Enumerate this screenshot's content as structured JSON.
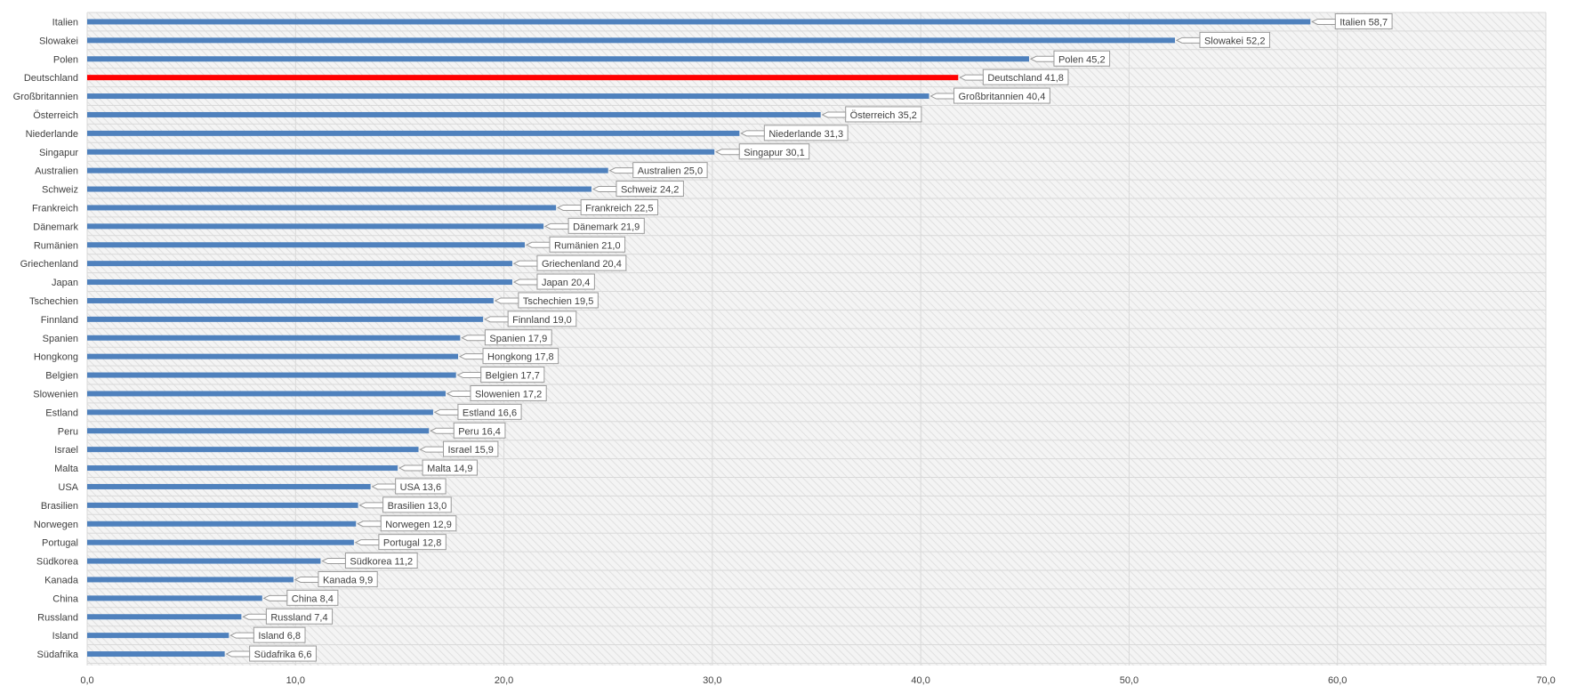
{
  "colors": {
    "bar": "#4f81bd",
    "highlight": "#ff0000",
    "label_border": "#9a9a9a",
    "plot_bg": "#f4f4f4",
    "grid": "#d9d9d9",
    "hatch": "#e0e0e0"
  },
  "chart_data": {
    "type": "bar",
    "orientation": "horizontal",
    "title": "",
    "xlabel": "",
    "ylabel": "",
    "xlim": [
      0,
      70
    ],
    "xticks": [
      0,
      10,
      20,
      30,
      40,
      50,
      60,
      70
    ],
    "xtick_labels": [
      "0,0",
      "10,0",
      "20,0",
      "30,0",
      "40,0",
      "50,0",
      "60,0",
      "70,0"
    ],
    "grid": true,
    "legend": "none",
    "highlight_category": "Deutschland",
    "categories": [
      "Italien",
      "Slowakei",
      "Polen",
      "Deutschland",
      "Großbritannien",
      "Österreich",
      "Niederlande",
      "Singapur",
      "Australien",
      "Schweiz",
      "Frankreich",
      "Dänemark",
      "Rumänien",
      "Griechenland",
      "Japan",
      "Tschechien",
      "Finnland",
      "Spanien",
      "Hongkong",
      "Belgien",
      "Slowenien",
      "Estland",
      "Peru",
      "Israel",
      "Malta",
      "USA",
      "Brasilien",
      "Norwegen",
      "Portugal",
      "Südkorea",
      "Kanada",
      "China",
      "Russland",
      "Island",
      "Südafrika"
    ],
    "values": [
      58.7,
      52.2,
      45.2,
      41.8,
      40.4,
      35.2,
      31.3,
      30.1,
      25.0,
      24.2,
      22.5,
      21.9,
      21.0,
      20.4,
      20.4,
      19.5,
      19.0,
      17.9,
      17.8,
      17.7,
      17.2,
      16.6,
      16.4,
      15.9,
      14.9,
      13.6,
      13.0,
      12.9,
      12.8,
      11.2,
      9.9,
      8.4,
      7.4,
      6.8,
      6.6
    ],
    "data_labels": [
      "Italien 58,7",
      "Slowakei 52,2",
      "Polen 45,2",
      "Deutschland 41,8",
      "Großbritannien  40,4",
      "Österreich 35,2",
      "Niederlande 31,3",
      "Singapur 30,1",
      "Australien 25,0",
      "Schweiz 24,2",
      "Frankreich  22,5",
      "Dänemark 21,9",
      "Rumänien 21,0",
      "Griechenland  20,4",
      "Japan  20,4",
      "Tschechien  19,5",
      "Finnland  19,0",
      "Spanien 17,9",
      "Hongkong  17,8",
      "Belgien 17,7",
      "Slowenien 17,2",
      "Estland 16,6",
      "Peru 16,4",
      "Israel 15,9",
      "Malta 14,9",
      "USA 13,6",
      "Brasilien 13,0",
      "Norwegen 12,9",
      "Portugal  12,8",
      "Südkorea  11,2",
      "Kanada  9,9",
      "China 8,4",
      "Russland 7,4",
      "Island  6,8",
      "Südafrika  6,6"
    ]
  }
}
